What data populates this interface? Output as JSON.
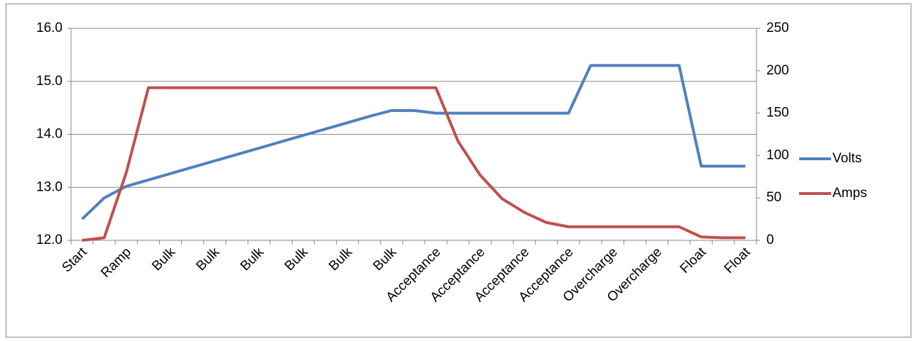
{
  "chart_data": {
    "type": "line",
    "categories": [
      "Start",
      null,
      "Ramp",
      null,
      "Bulk",
      null,
      "Bulk",
      null,
      "Bulk",
      null,
      "Bulk",
      null,
      "Bulk",
      null,
      "Bulk",
      null,
      "Acceptance",
      null,
      "Acceptance",
      null,
      "Acceptance",
      null,
      "Acceptance",
      null,
      "Overcharge",
      null,
      "Overcharge",
      null,
      "Float",
      null,
      "Float"
    ],
    "series": [
      {
        "name": "Volts",
        "color": "#4f81bd",
        "values": [
          12.4,
          12.8,
          13.02,
          13.14,
          13.26,
          13.38,
          13.5,
          13.62,
          13.74,
          13.86,
          13.98,
          14.1,
          14.22,
          14.34,
          14.45,
          14.45,
          14.4,
          14.4,
          14.4,
          14.4,
          14.4,
          14.4,
          14.4,
          15.3,
          15.3,
          15.3,
          15.3,
          15.3,
          13.4,
          13.4,
          13.4
        ]
      },
      {
        "name": "Amps",
        "color": "#c0504d",
        "axis": "y2",
        "values": [
          0,
          3,
          80,
          180,
          180,
          180,
          180,
          180,
          180,
          180,
          180,
          180,
          180,
          180,
          180,
          180,
          180,
          117,
          77,
          49,
          33,
          21,
          16,
          16,
          16,
          16,
          16,
          16,
          4,
          3,
          3
        ]
      }
    ],
    "ylim": [
      12,
      16
    ],
    "yticks": [
      {
        "value": 12,
        "label": "12.0"
      },
      {
        "value": 13,
        "label": "13.0"
      },
      {
        "value": 14,
        "label": "14.0"
      },
      {
        "value": 15,
        "label": "15.0"
      },
      {
        "value": 16,
        "label": "16.0"
      }
    ],
    "y2lim": [
      0,
      250
    ],
    "y2ticks": [
      0,
      50,
      100,
      150,
      200,
      250
    ],
    "grid": true,
    "legend": "right"
  }
}
